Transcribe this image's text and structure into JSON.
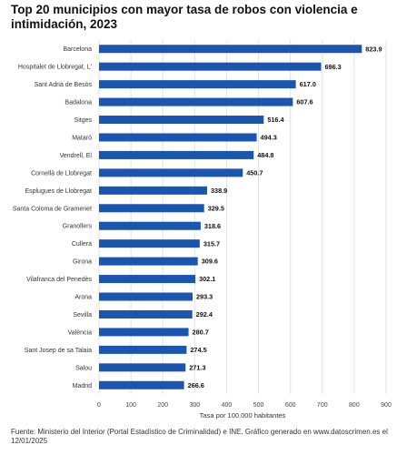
{
  "chart_data": {
    "type": "bar",
    "orientation": "horizontal",
    "title": "Top 20 municipios con mayor tasa de robos con violencia e intimidación, 2023",
    "xlabel": "Tasa por 100.000 habitantes",
    "ylabel": "",
    "xlim": [
      0,
      900
    ],
    "xticks": [
      0,
      100,
      200,
      300,
      400,
      500,
      600,
      700,
      800,
      900
    ],
    "grid": true,
    "bar_color": "#1a56b0",
    "categories": [
      "Barcelona",
      "Hospitalet de Llobregat, L'",
      "Sant Adrià de Besòs",
      "Badalona",
      "Sitges",
      "Mataró",
      "Vendrell, El",
      "Cornellà de Llobregat",
      "Esplugues de Llobregat",
      "Santa Coloma de Gramenet",
      "Granollers",
      "Cullera",
      "Girona",
      "Vilafranca del Penedès",
      "Arona",
      "Sevilla",
      "València",
      "Sant Josep de sa Talaia",
      "Salou",
      "Madrid"
    ],
    "values": [
      823.9,
      696.3,
      617.0,
      607.6,
      516.4,
      494.3,
      484.8,
      450.7,
      338.9,
      329.5,
      318.6,
      315.7,
      309.6,
      302.1,
      293.3,
      292.4,
      280.7,
      274.5,
      271.3,
      266.6
    ],
    "value_labels": [
      "823.9",
      "696.3",
      "617.0",
      "607.6",
      "516.4",
      "494.3",
      "484.8",
      "450.7",
      "338.9",
      "329.5",
      "318.6",
      "315.7",
      "309.6",
      "302.1",
      "293.3",
      "292.4",
      "280.7",
      "274.5",
      "271.3",
      "266.6"
    ]
  },
  "footer": "Fuente: Ministerio del Interior (Portal Estadístico de Criminalidad) e INE. Gráfico generado en www.datoscrimen.es el 12/01/2025"
}
